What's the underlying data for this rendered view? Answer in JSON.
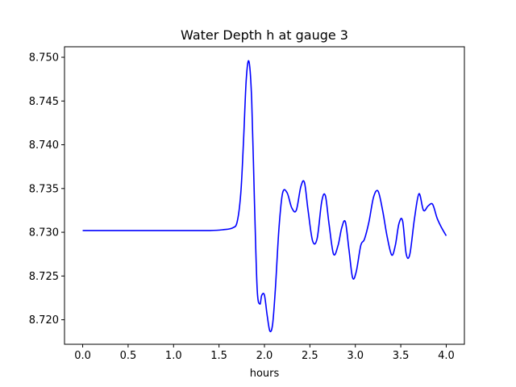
{
  "chart_data": {
    "type": "line",
    "title": "Water Depth h at gauge 3",
    "xlabel": "hours",
    "ylabel": "",
    "xlim": [
      -0.2,
      4.2
    ],
    "ylim": [
      8.7172,
      8.7512
    ],
    "x_ticks": [
      0.0,
      0.5,
      1.0,
      1.5,
      2.0,
      2.5,
      3.0,
      3.5,
      4.0
    ],
    "x_tick_labels": [
      "0.0",
      "0.5",
      "1.0",
      "1.5",
      "2.0",
      "2.5",
      "3.0",
      "3.5",
      "4.0"
    ],
    "y_ticks": [
      8.72,
      8.725,
      8.73,
      8.735,
      8.74,
      8.745,
      8.75
    ],
    "y_tick_labels": [
      "8.720",
      "8.725",
      "8.730",
      "8.735",
      "8.740",
      "8.745",
      "8.750"
    ],
    "grid": false,
    "series": [
      {
        "color": "#0000ff",
        "x": [
          0.0,
          0.5,
          1.0,
          1.4,
          1.55,
          1.65,
          1.7,
          1.74,
          1.77,
          1.8,
          1.83,
          1.86,
          1.89,
          1.92,
          1.95,
          1.97,
          2.0,
          2.03,
          2.06,
          2.09,
          2.12,
          2.16,
          2.2,
          2.25,
          2.3,
          2.35,
          2.4,
          2.44,
          2.48,
          2.53,
          2.58,
          2.63,
          2.67,
          2.71,
          2.76,
          2.81,
          2.85,
          2.89,
          2.93,
          2.97,
          3.01,
          3.06,
          3.1,
          3.15,
          3.2,
          3.25,
          3.3,
          3.35,
          3.4,
          3.44,
          3.48,
          3.52,
          3.56,
          3.6,
          3.65,
          3.7,
          3.75,
          3.8,
          3.85,
          3.9,
          3.95,
          4.0
        ],
        "y": [
          8.7302,
          8.7302,
          8.7302,
          8.7302,
          8.7303,
          8.7305,
          8.7312,
          8.7345,
          8.7405,
          8.7475,
          8.7495,
          8.745,
          8.7335,
          8.7235,
          8.7218,
          8.7228,
          8.7228,
          8.7205,
          8.7187,
          8.7195,
          8.7235,
          8.7305,
          8.7345,
          8.7345,
          8.7328,
          8.7325,
          8.7352,
          8.7357,
          8.7325,
          8.729,
          8.7293,
          8.7335,
          8.7342,
          8.731,
          8.7275,
          8.7285,
          8.7305,
          8.7312,
          8.728,
          8.7248,
          8.7255,
          8.7285,
          8.7292,
          8.7312,
          8.734,
          8.7347,
          8.7325,
          8.7295,
          8.7274,
          8.7285,
          8.731,
          8.7313,
          8.7275,
          8.7275,
          8.7315,
          8.7344,
          8.7325,
          8.733,
          8.7332,
          8.7316,
          8.7305,
          8.7296
        ]
      }
    ]
  }
}
